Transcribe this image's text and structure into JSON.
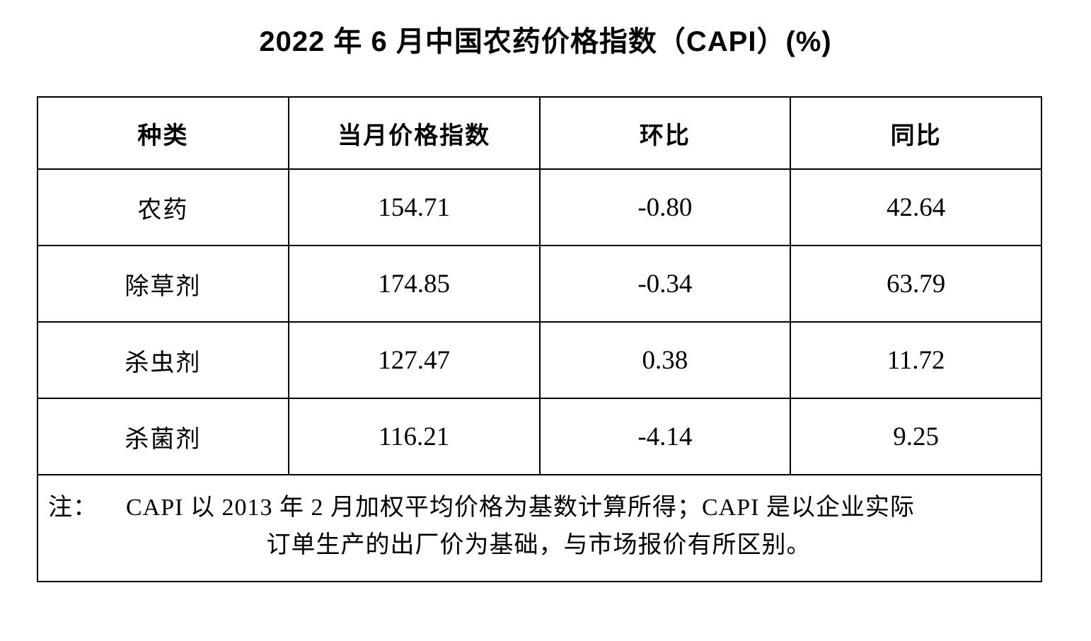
{
  "title": "2022 年 6 月中国农药价格指数（CAPI）(%)",
  "table": {
    "headers": [
      "种类",
      "当月价格指数",
      "环比",
      "同比"
    ],
    "rows": [
      {
        "category": "农药",
        "index": "154.71",
        "mom": "-0.80",
        "yoy": "42.64"
      },
      {
        "category": "除草剂",
        "index": "174.85",
        "mom": "-0.34",
        "yoy": "63.79"
      },
      {
        "category": "杀虫剂",
        "index": "127.47",
        "mom": "0.38",
        "yoy": "11.72"
      },
      {
        "category": "杀菌剂",
        "index": "116.21",
        "mom": "-4.14",
        "yoy": "9.25"
      }
    ]
  },
  "note": {
    "label": "注：",
    "line1": "CAPI 以 2013 年 2 月加权平均价格为基数计算所得；CAPI 是以企业实际",
    "line2": "订单生产的出厂价为基础，与市场报价有所区别。"
  },
  "colors": {
    "background": "#ffffff",
    "text": "#000000",
    "border": "#000000"
  },
  "chart_data": {
    "type": "table",
    "title": "2022 年 6 月中国农药价格指数（CAPI）(%)",
    "columns": [
      "种类",
      "当月价格指数",
      "环比",
      "同比"
    ],
    "rows": [
      [
        "农药",
        154.71,
        -0.8,
        42.64
      ],
      [
        "除草剂",
        174.85,
        -0.34,
        63.79
      ],
      [
        "杀虫剂",
        127.47,
        0.38,
        11.72
      ],
      [
        "杀菌剂",
        116.21,
        -4.14,
        9.25
      ]
    ],
    "note": "注： CAPI 以 2013 年 2 月加权平均价格为基数计算所得；CAPI 是以企业实际订单生产的出厂价为基础，与市场报价有所区别。"
  }
}
